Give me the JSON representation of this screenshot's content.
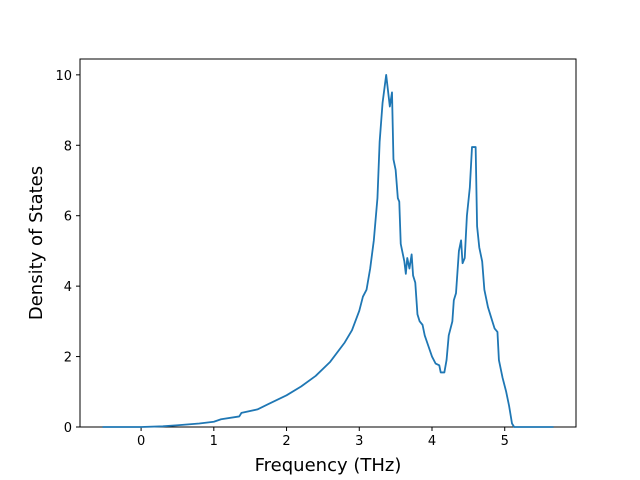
{
  "chart_data": {
    "type": "line",
    "xlabel": "Frequency (THz)",
    "ylabel": "Density of States",
    "color": "#1f77b4",
    "x": [
      -0.53,
      0,
      0.3,
      0.5,
      0.8,
      1.0,
      1.1,
      1.35,
      1.38,
      1.6,
      1.75,
      2.0,
      2.2,
      2.4,
      2.6,
      2.8,
      2.9,
      3.0,
      3.05,
      3.1,
      3.15,
      3.2,
      3.25,
      3.28,
      3.32,
      3.37,
      3.42,
      3.45,
      3.47,
      3.5,
      3.53,
      3.55,
      3.57,
      3.62,
      3.64,
      3.66,
      3.69,
      3.72,
      3.74,
      3.77,
      3.8,
      3.83,
      3.87,
      3.9,
      3.95,
      4.0,
      4.05,
      4.1,
      4.12,
      4.17,
      4.2,
      4.23,
      4.28,
      4.3,
      4.33,
      4.37,
      4.4,
      4.42,
      4.45,
      4.48,
      4.52,
      4.55,
      4.6,
      4.62,
      4.65,
      4.69,
      4.72,
      4.77,
      4.8,
      4.83,
      4.86,
      4.9,
      4.92,
      4.97,
      5.02,
      5.06,
      5.1,
      5.13,
      5.67
    ],
    "values": [
      0,
      0,
      0.02,
      0.05,
      0.1,
      0.15,
      0.22,
      0.3,
      0.4,
      0.5,
      0.65,
      0.9,
      1.15,
      1.45,
      1.85,
      2.4,
      2.75,
      3.3,
      3.7,
      3.9,
      4.5,
      5.3,
      6.5,
      8.1,
      9.2,
      10.0,
      9.1,
      9.5,
      7.6,
      7.3,
      6.5,
      6.4,
      5.2,
      4.7,
      4.35,
      4.8,
      4.5,
      4.9,
      4.3,
      4.1,
      3.2,
      3.0,
      2.9,
      2.6,
      2.3,
      2.0,
      1.8,
      1.75,
      1.55,
      1.55,
      1.9,
      2.6,
      3.0,
      3.6,
      3.8,
      5.0,
      5.3,
      4.65,
      4.8,
      6.0,
      6.8,
      7.95,
      7.95,
      5.7,
      5.1,
      4.7,
      3.9,
      3.4,
      3.2,
      3.0,
      2.8,
      2.7,
      1.9,
      1.4,
      1.0,
      0.6,
      0.1,
      0,
      0
    ],
    "xlim": [
      -0.84,
      5.98
    ],
    "xticks": [
      0,
      1,
      2,
      3,
      4,
      5
    ],
    "ylim": [
      0,
      10.45
    ],
    "yticks": [
      0,
      2,
      4,
      6,
      8,
      10
    ]
  }
}
